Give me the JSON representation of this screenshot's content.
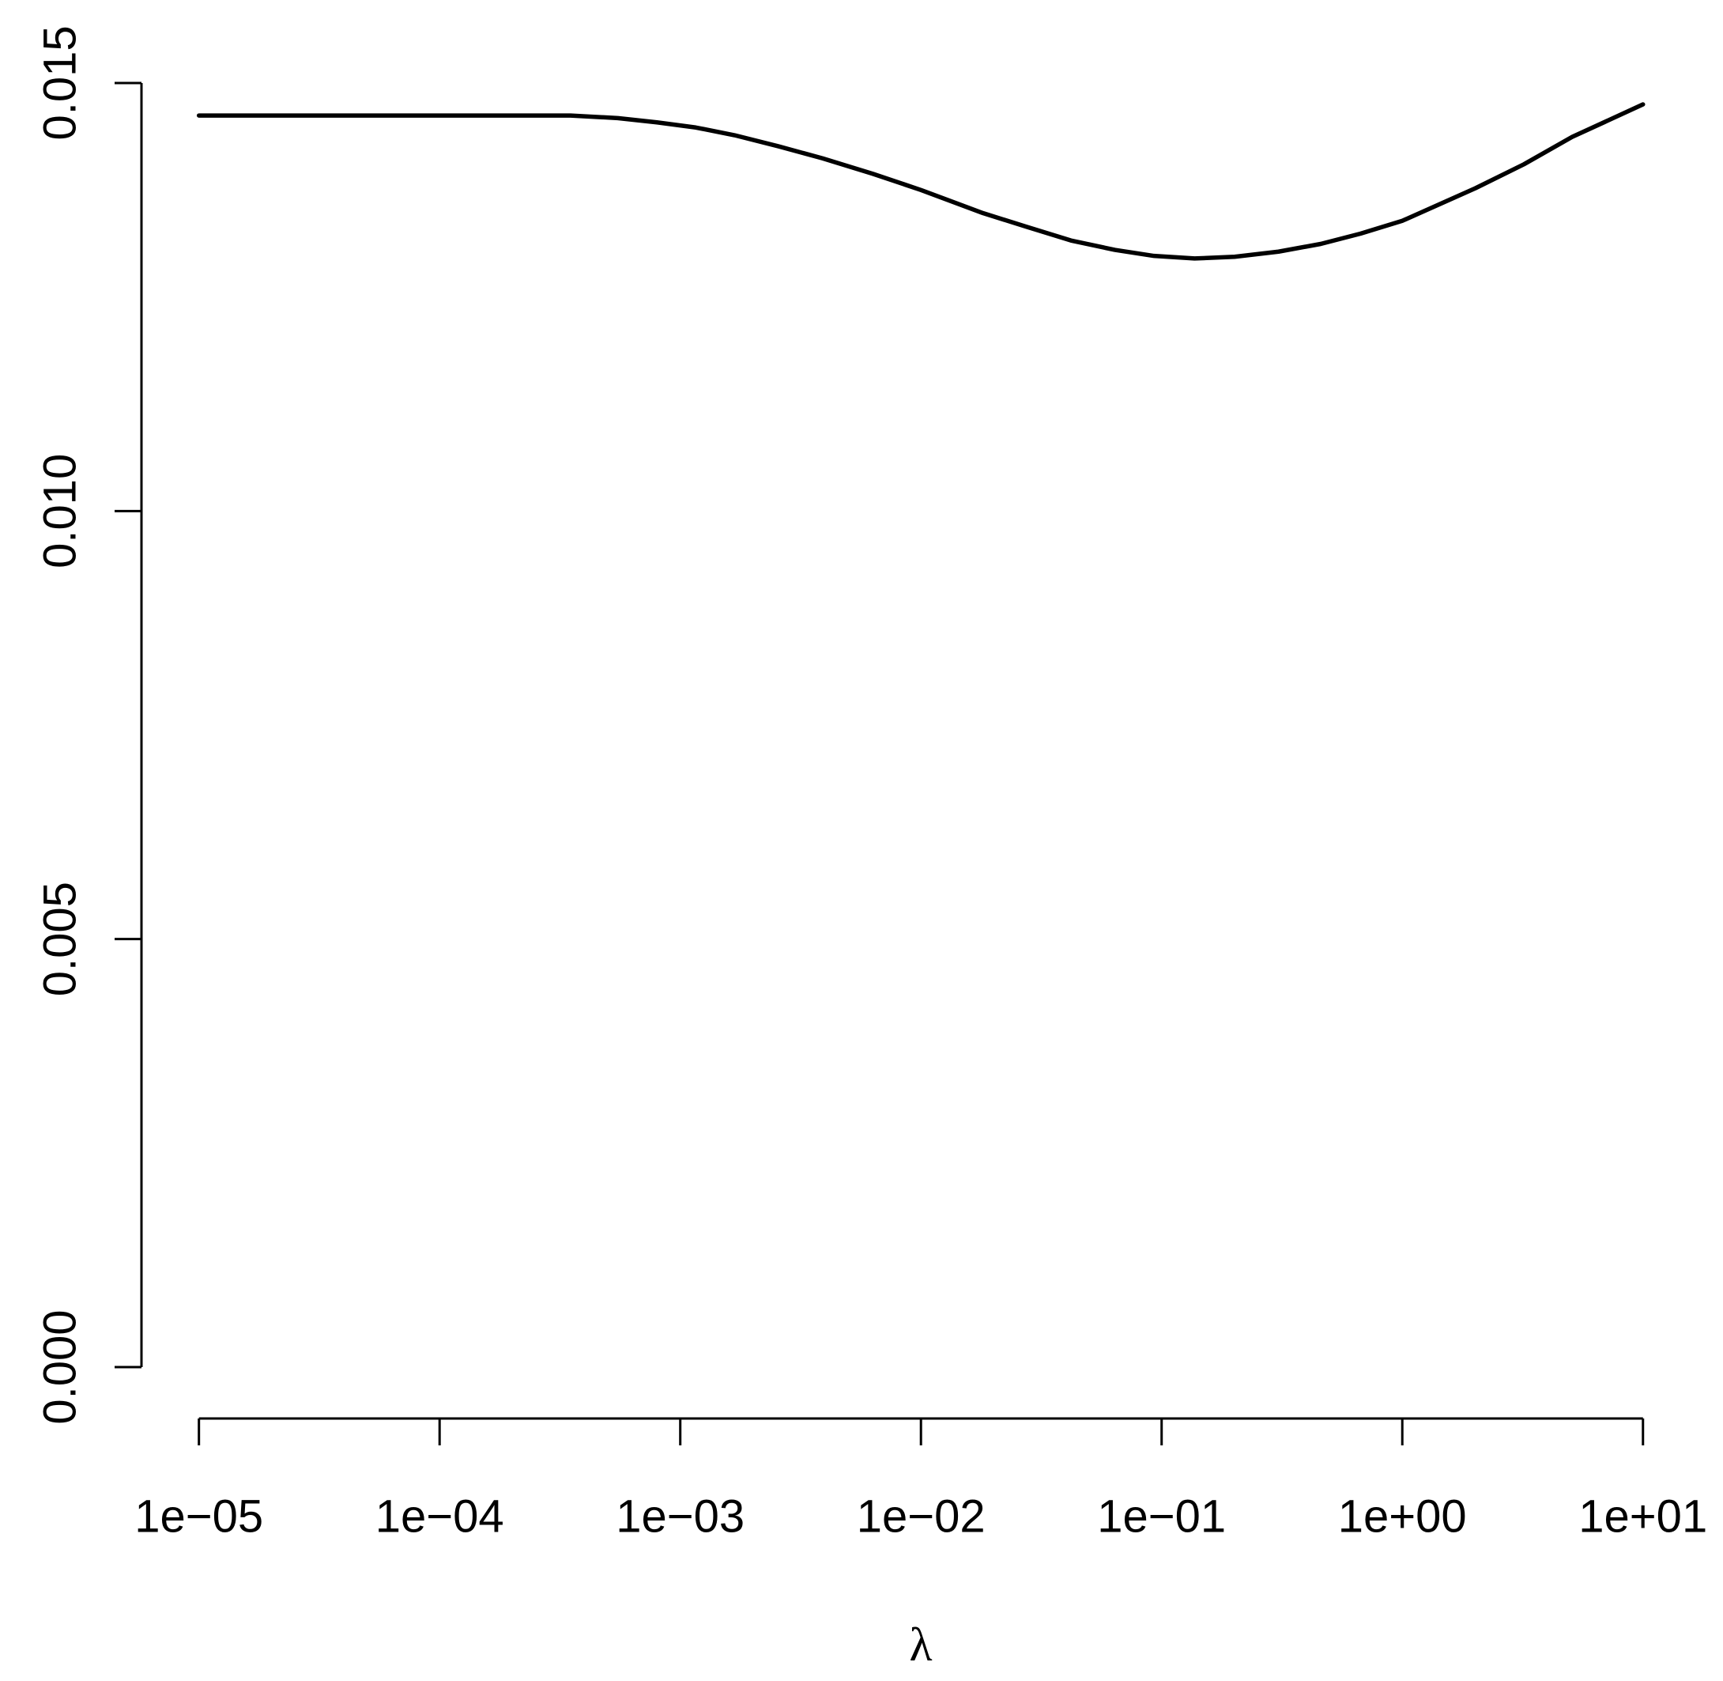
{
  "chart_data": {
    "type": "line",
    "x_label": "λ",
    "x_log": true,
    "color": "#000000",
    "x": [
      1e-05,
      0.0001,
      0.00035,
      0.00055,
      0.0008,
      0.00116,
      0.00168,
      0.00256,
      0.0039,
      0.0063,
      0.01,
      0.0181,
      0.0275,
      0.042,
      0.064,
      0.093,
      0.137,
      0.201,
      0.306,
      0.458,
      0.67,
      1,
      2.01,
      3.2,
      5.08,
      10
    ],
    "values": [
      0.01462,
      0.01462,
      0.01462,
      0.01459,
      0.01454,
      0.01448,
      0.01439,
      0.01426,
      0.01412,
      0.01394,
      0.01375,
      0.01348,
      0.01332,
      0.01316,
      0.01305,
      0.01298,
      0.01295,
      0.01297,
      0.01303,
      0.01312,
      0.01324,
      0.01339,
      0.01377,
      0.01405,
      0.01437,
      0.01475
    ],
    "xlim": [
      5.75e-06,
      17.4
    ],
    "ylim": [
      -0.0006,
      0.0156
    ],
    "xticks": [
      {
        "value": 1e-05,
        "label": "1e−05"
      },
      {
        "value": 0.0001,
        "label": "1e−04"
      },
      {
        "value": 0.001,
        "label": "1e−03"
      },
      {
        "value": 0.01,
        "label": "1e−02"
      },
      {
        "value": 0.1,
        "label": "1e−01"
      },
      {
        "value": 1,
        "label": "1e+00"
      },
      {
        "value": 10,
        "label": "1e+01"
      }
    ],
    "yticks": [
      {
        "value": 0,
        "label": "0.000"
      },
      {
        "value": 0.005,
        "label": "0.005"
      },
      {
        "value": 0.01,
        "label": "0.010"
      },
      {
        "value": 0.015,
        "label": "0.015"
      }
    ]
  }
}
